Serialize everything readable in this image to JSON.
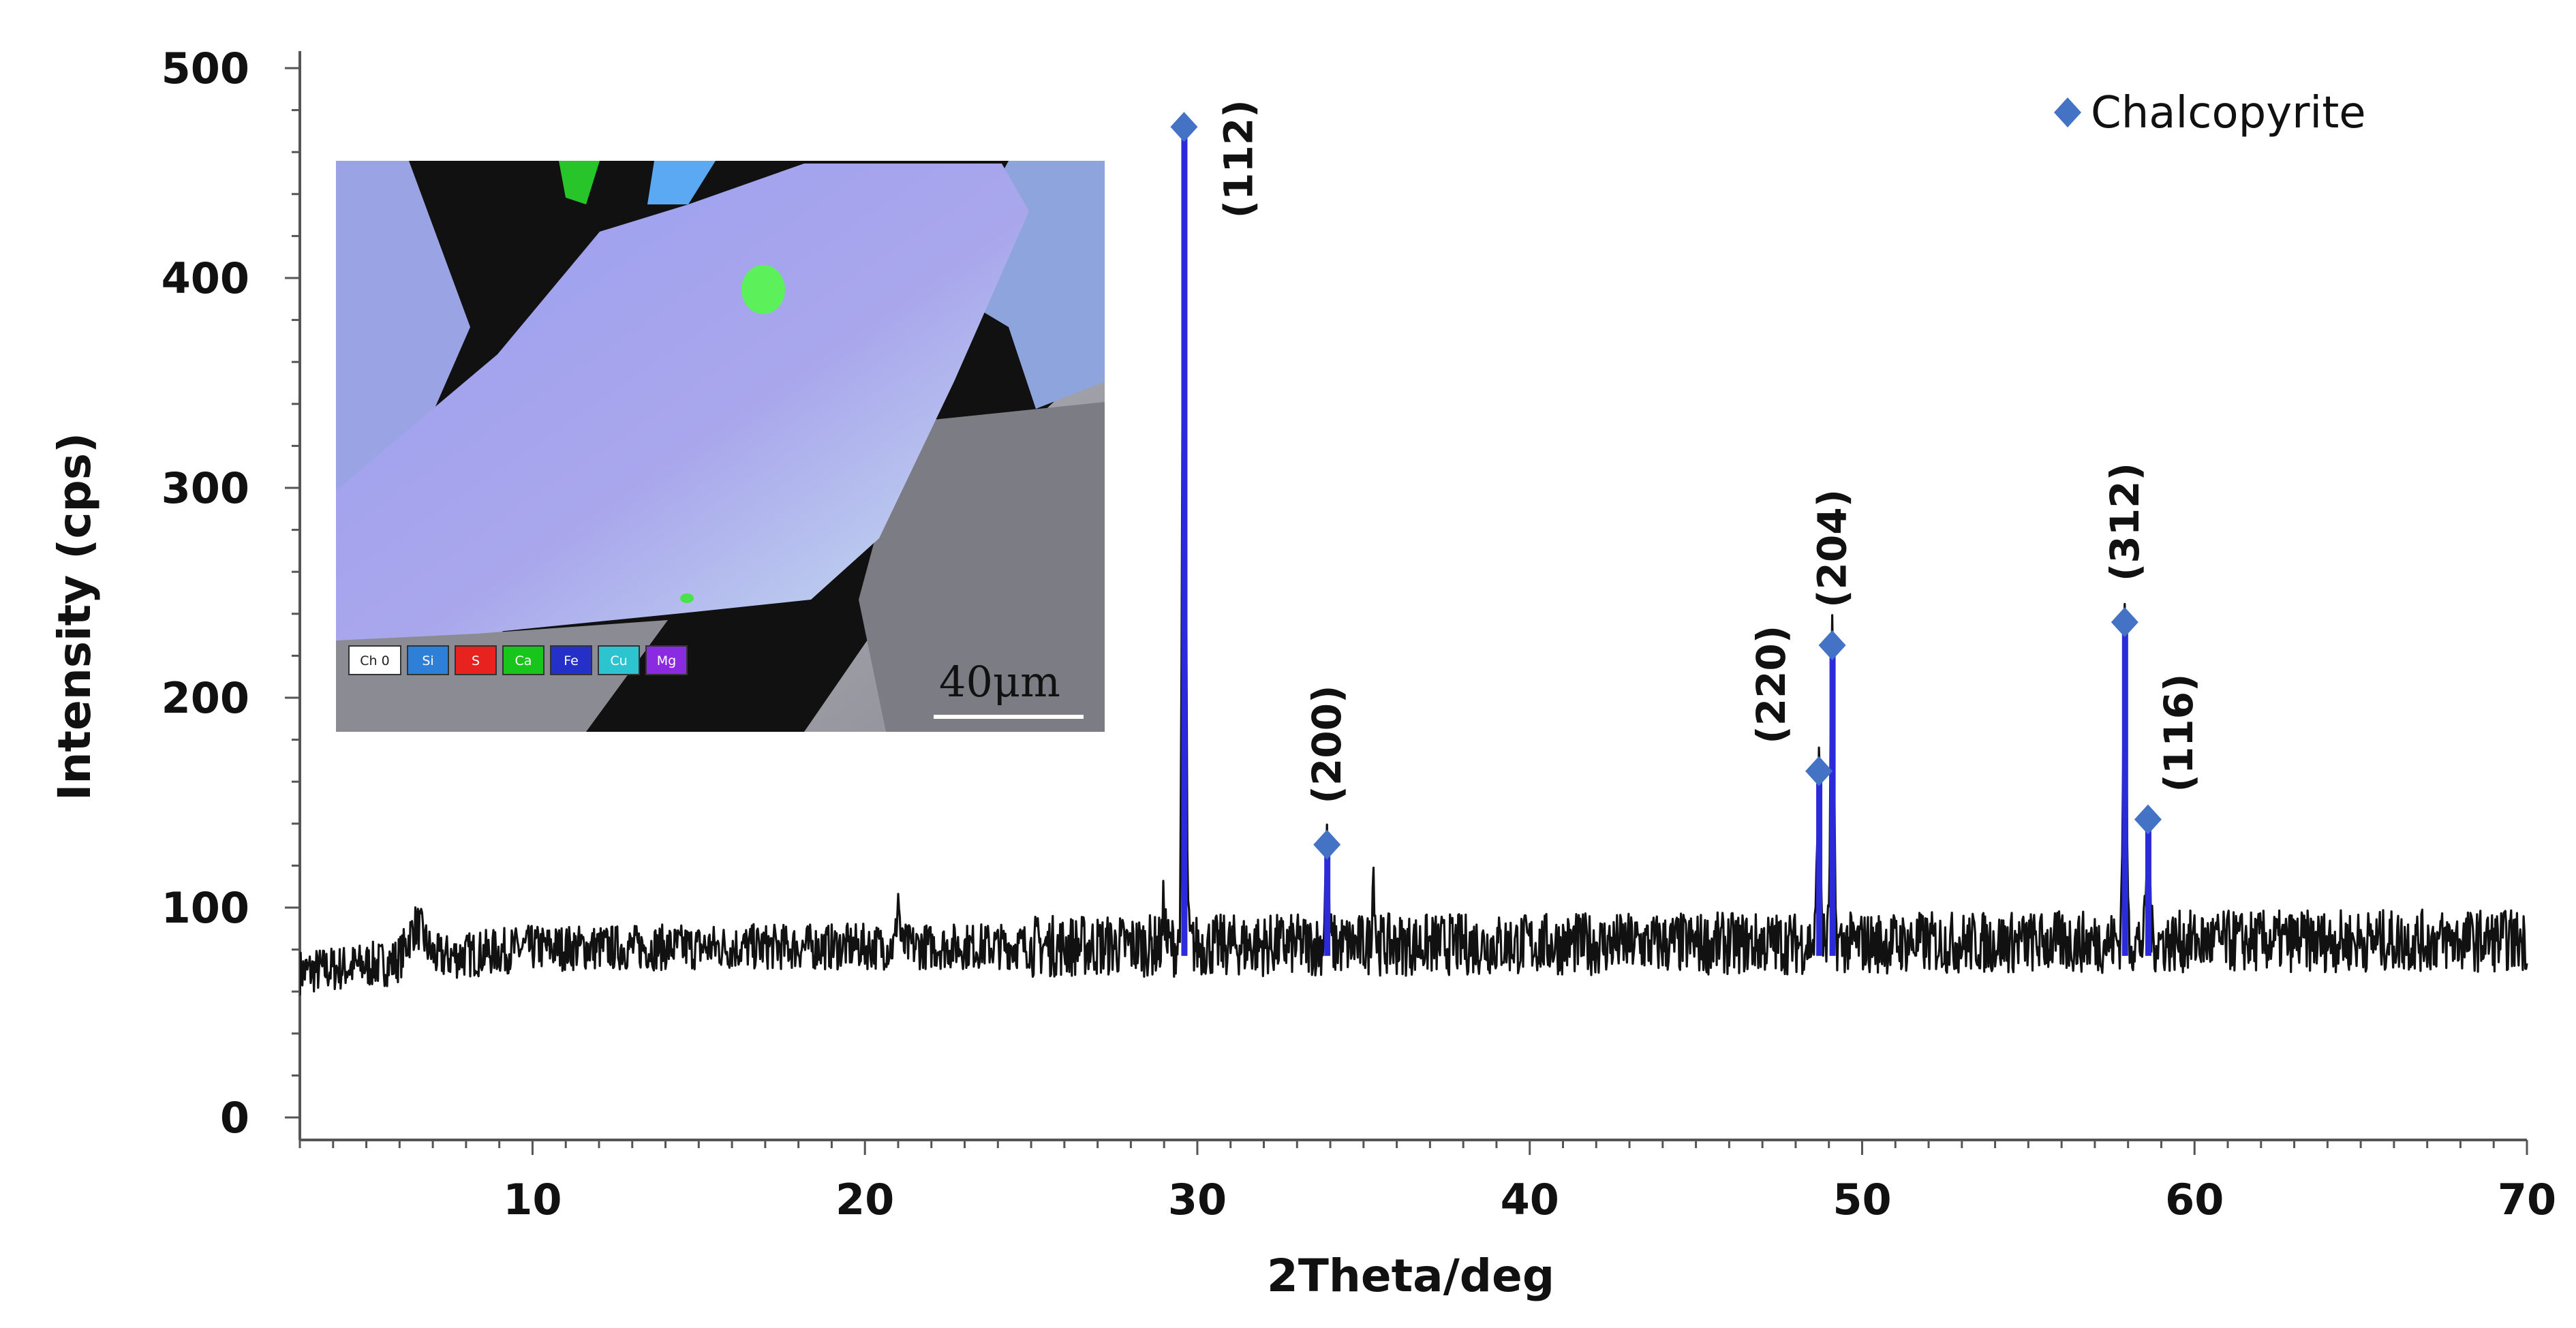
{
  "chart_data": {
    "type": "line",
    "title": "",
    "xlabel": "2Theta/deg",
    "ylabel": "Intensity (cps)",
    "xlim": [
      3,
      70
    ],
    "ylim": [
      0,
      500
    ],
    "x_ticks": [
      10,
      20,
      30,
      40,
      50,
      60,
      70
    ],
    "y_ticks": [
      0,
      100,
      200,
      300,
      400,
      500
    ],
    "grid": false,
    "baseline": 82,
    "noise_amplitude": 11,
    "background_peaks": [
      {
        "x": 6.5,
        "y": 98,
        "width": 0.35
      },
      {
        "x": 21.0,
        "y": 106,
        "width": 0.06
      },
      {
        "x": 35.3,
        "y": 116,
        "width": 0.06
      },
      {
        "x": 29.0,
        "y": 103,
        "width": 0.05
      }
    ],
    "series": [
      {
        "name": "Chalcopyrite",
        "marker": "diamond",
        "color": "#4472c4",
        "stick_color": "#2b2bdc",
        "peaks": [
          {
            "x": 29.6,
            "y": 472,
            "hkl": "(112)"
          },
          {
            "x": 33.9,
            "y": 130,
            "hkl": "(200)"
          },
          {
            "x": 48.7,
            "y": 165,
            "hkl": "(220)"
          },
          {
            "x": 49.1,
            "y": 225,
            "hkl": "(204)"
          },
          {
            "x": 57.9,
            "y": 236,
            "hkl": "(312)"
          },
          {
            "x": 58.6,
            "y": 142,
            "hkl": "(116)"
          }
        ]
      }
    ],
    "legend": {
      "label": "Chalcopyrite",
      "position": "top-right"
    }
  },
  "inset": {
    "description_label": "SEM-EDS element map",
    "channel_keys": [
      {
        "label": "Ch 0",
        "color": "#ffffff",
        "text_color": "#222222"
      },
      {
        "label": "Si",
        "color": "#2d7fd8",
        "text_color": "#ffffff"
      },
      {
        "label": "S",
        "color": "#e8231f",
        "text_color": "#ffffff"
      },
      {
        "label": "Ca",
        "color": "#18c51a",
        "text_color": "#ffffff"
      },
      {
        "label": "Fe",
        "color": "#2430c8",
        "text_color": "#ffffff"
      },
      {
        "label": "Cu",
        "color": "#2bc4cf",
        "text_color": "#ffffff"
      },
      {
        "label": "Mg",
        "color": "#8a2be2",
        "text_color": "#ffffff"
      }
    ],
    "scale_bar": "40μm"
  }
}
